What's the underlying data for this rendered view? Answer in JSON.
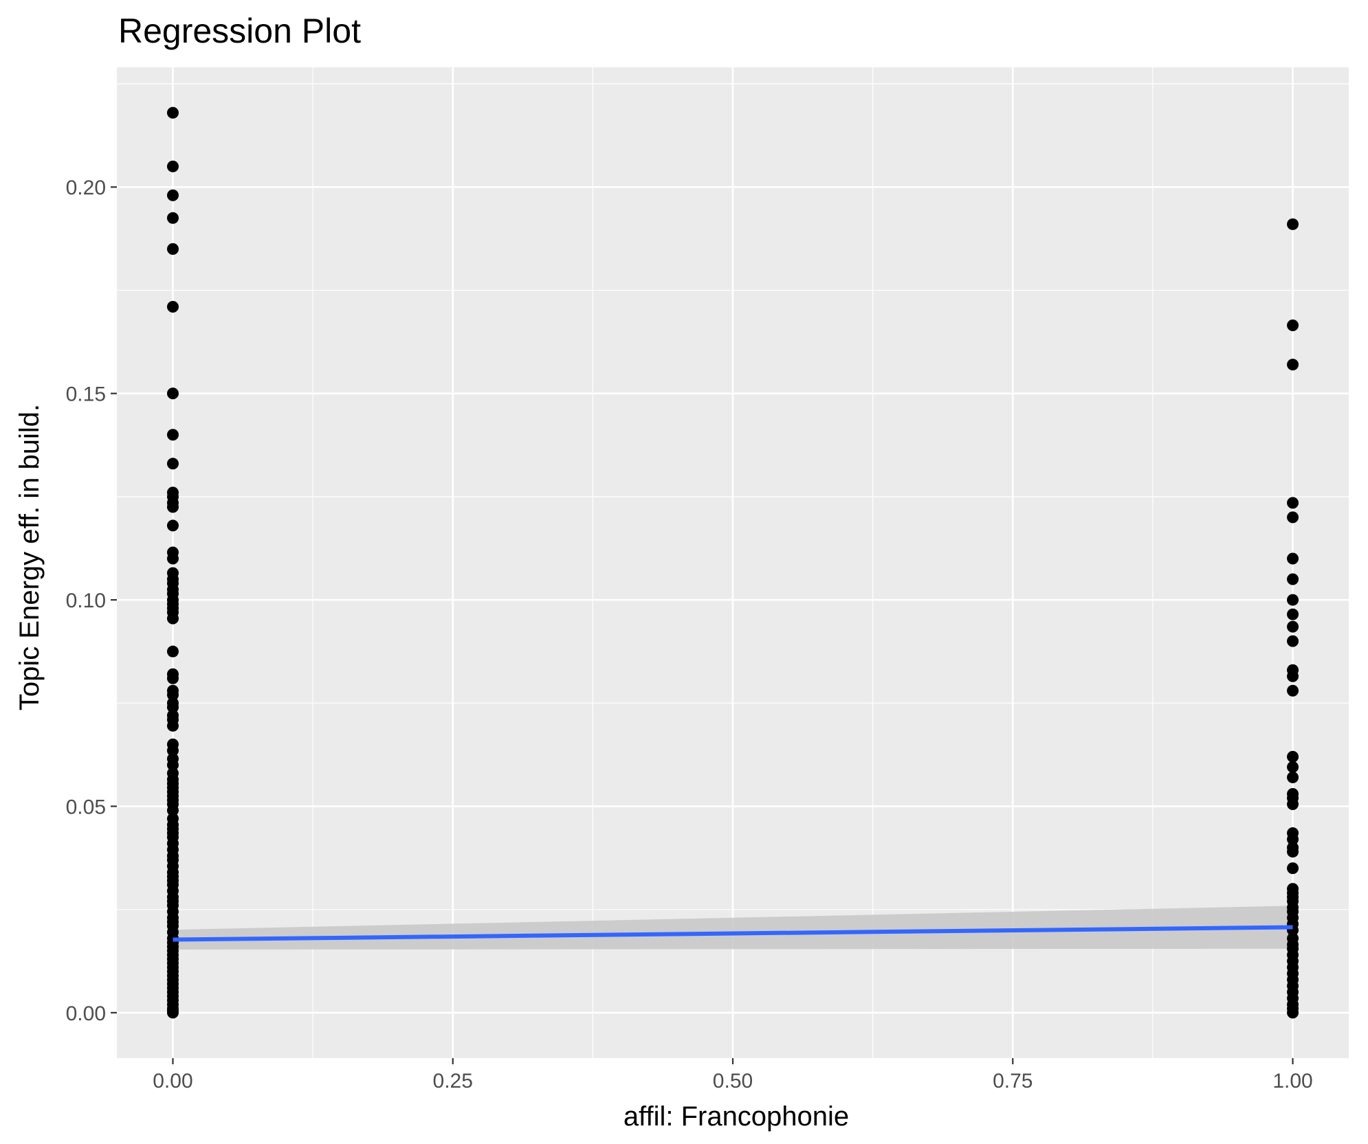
{
  "chart_data": {
    "type": "scatter",
    "title": "Regression Plot",
    "xlabel": "affil: Francophonie",
    "ylabel": "Topic Energy eff. in build.",
    "xlim": [
      -0.05,
      1.05
    ],
    "ylim": [
      -0.011,
      0.229
    ],
    "x_ticks": [
      0.0,
      0.25,
      0.5,
      0.75,
      1.0
    ],
    "x_tick_labels": [
      "0.00",
      "0.25",
      "0.50",
      "0.75",
      "1.00"
    ],
    "y_ticks": [
      0.0,
      0.05,
      0.1,
      0.15,
      0.2
    ],
    "y_tick_labels": [
      "0.00",
      "0.05",
      "0.10",
      "0.15",
      "0.20"
    ],
    "grid": true,
    "panel_color": "#ebebeb",
    "grid_color": "#ffffff",
    "point_color": "#000000",
    "line_color": "#3366ff",
    "ribbon_color": "#c7c7c7",
    "series": [
      {
        "x": 0,
        "y": [
          0.218,
          0.205,
          0.198,
          0.1925,
          0.185,
          0.171,
          0.15,
          0.14,
          0.133,
          0.126,
          0.125,
          0.1235,
          0.1225,
          0.118,
          0.1115,
          0.11,
          0.1065,
          0.105,
          0.104,
          0.1025,
          0.1015,
          0.1,
          0.099,
          0.098,
          0.097,
          0.0955,
          0.0875,
          0.082,
          0.081,
          0.078,
          0.077,
          0.075,
          0.074,
          0.072,
          0.071,
          0.0695,
          0.065,
          0.0635,
          0.0615,
          0.06,
          0.058,
          0.0565,
          0.0555,
          0.0545,
          0.0535,
          0.0525,
          0.0515,
          0.0505,
          0.049,
          0.047,
          0.0455,
          0.0445,
          0.0435,
          0.0425,
          0.041,
          0.0395,
          0.038,
          0.037,
          0.0355,
          0.034,
          0.033,
          0.032,
          0.031,
          0.0295,
          0.028,
          0.027,
          0.026,
          0.0245,
          0.023,
          0.022,
          0.021,
          0.0195,
          0.018,
          0.017,
          0.016,
          0.015,
          0.014,
          0.013,
          0.012,
          0.011,
          0.01,
          0.009,
          0.008,
          0.007,
          0.006,
          0.005,
          0.004,
          0.003,
          0.002,
          0.001,
          0.0005,
          0.0
        ]
      },
      {
        "x": 1,
        "y": [
          0.191,
          0.1665,
          0.157,
          0.1235,
          0.12,
          0.11,
          0.105,
          0.1,
          0.0965,
          0.0935,
          0.09,
          0.083,
          0.0815,
          0.078,
          0.062,
          0.0595,
          0.057,
          0.053,
          0.052,
          0.0505,
          0.0435,
          0.042,
          0.04,
          0.039,
          0.035,
          0.03,
          0.029,
          0.028,
          0.027,
          0.0255,
          0.0245,
          0.023,
          0.0215,
          0.02,
          0.018,
          0.0165,
          0.0155,
          0.014,
          0.0125,
          0.011,
          0.0095,
          0.008,
          0.0065,
          0.005,
          0.0035,
          0.002,
          0.001,
          0.0
        ]
      }
    ],
    "regression": {
      "x": [
        0,
        1
      ],
      "y": [
        0.0177,
        0.0207
      ],
      "ci_lower": [
        0.0153,
        0.0155
      ],
      "ci_upper": [
        0.0201,
        0.0259
      ]
    }
  }
}
